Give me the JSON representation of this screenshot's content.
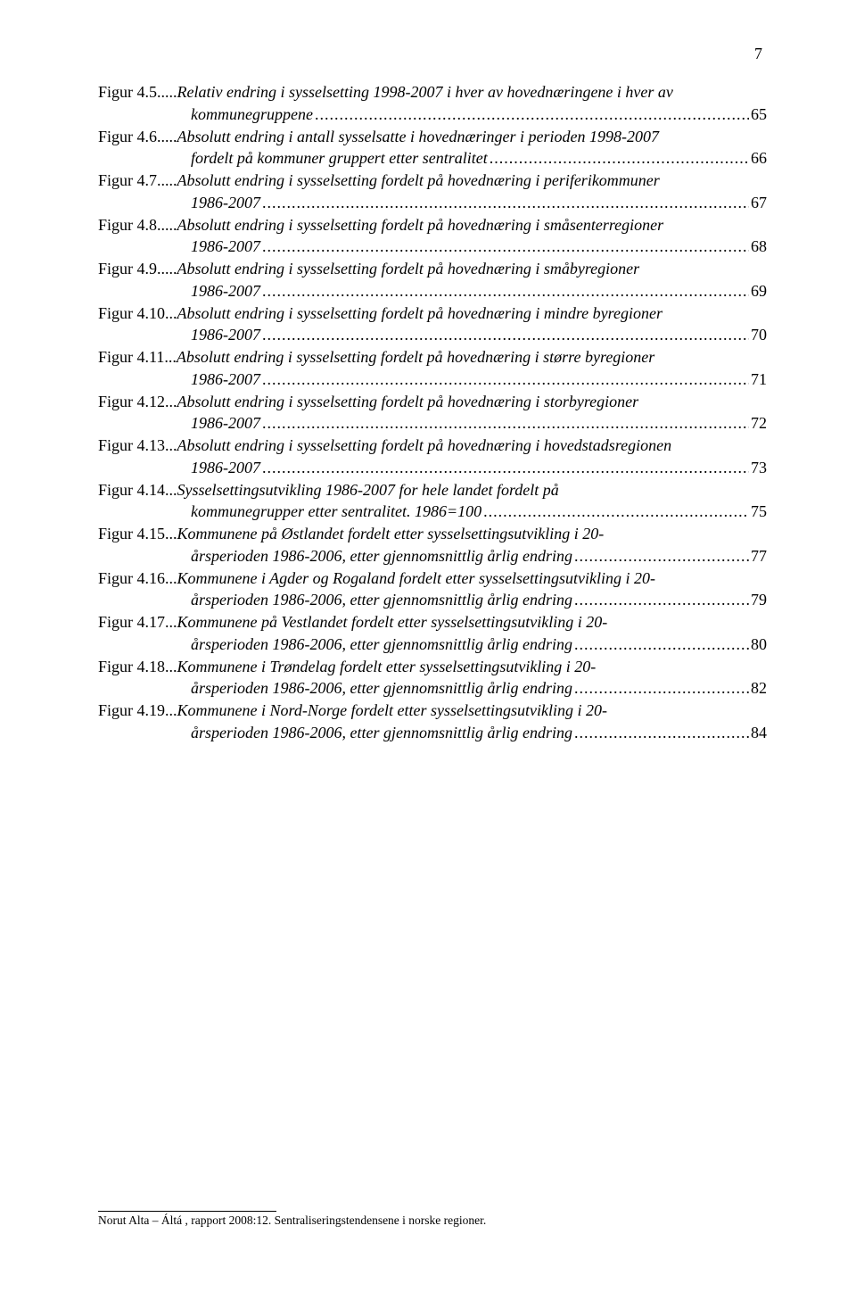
{
  "page_number": "7",
  "footer": "Norut Alta – Áltá , rapport 2008:12. Sentraliseringstendensene i norske regioner.",
  "entries": [
    {
      "label": "Figur 4.5.....",
      "lines": [
        "Relativ endring i sysselsetting 1998-2007 i hver av hovednæringene i hver av",
        "kommunegruppene"
      ],
      "page": "65"
    },
    {
      "label": "Figur 4.6.....",
      "lines": [
        "Absolutt endring i antall sysselsatte i hovednæringer i perioden 1998-2007",
        "fordelt på kommuner gruppert etter sentralitet"
      ],
      "page": "66"
    },
    {
      "label": "Figur 4.7.....",
      "lines": [
        "Absolutt endring i sysselsetting fordelt på hovednæring i periferikommuner",
        "1986-2007"
      ],
      "page": "67"
    },
    {
      "label": "Figur 4.8.....",
      "lines": [
        "Absolutt endring i sysselsetting fordelt på hovednæring i småsenterregioner",
        "1986-2007"
      ],
      "page": "68"
    },
    {
      "label": "Figur 4.9.....",
      "lines": [
        "Absolutt endring i sysselsetting fordelt på hovednæring i småbyregioner",
        "1986-2007"
      ],
      "page": "69"
    },
    {
      "label": "Figur 4.10...",
      "lines": [
        "Absolutt endring i sysselsetting fordelt på hovednæring i mindre byregioner",
        "1986-2007"
      ],
      "page": "70"
    },
    {
      "label": "Figur 4.11...",
      "lines": [
        "Absolutt endring i sysselsetting fordelt på hovednæring i større byregioner",
        "1986-2007"
      ],
      "page": "71"
    },
    {
      "label": "Figur 4.12...",
      "lines": [
        "Absolutt endring i sysselsetting fordelt på hovednæring i storbyregioner",
        "1986-2007"
      ],
      "page": "72"
    },
    {
      "label": "Figur 4.13...",
      "lines": [
        "Absolutt endring i sysselsetting fordelt på hovednæring i hovedstadsregionen",
        "1986-2007"
      ],
      "page": "73"
    },
    {
      "label": "Figur 4.14...",
      "lines": [
        "Sysselsettingsutvikling 1986-2007 for hele landet fordelt på",
        "kommunegrupper etter sentralitet. 1986=100"
      ],
      "page": "75"
    },
    {
      "label": "Figur 4.15...",
      "lines": [
        "Kommunene på Østlandet fordelt etter sysselsettingsutvikling i 20-",
        "årsperioden 1986-2006, etter gjennomsnittlig årlig endring"
      ],
      "page": "77"
    },
    {
      "label": "Figur 4.16...",
      "lines": [
        "Kommunene i Agder og Rogaland fordelt etter sysselsettingsutvikling i 20-",
        "årsperioden 1986-2006, etter gjennomsnittlig årlig endring"
      ],
      "page": "79"
    },
    {
      "label": "Figur 4.17...",
      "lines": [
        "Kommunene på Vestlandet fordelt etter sysselsettingsutvikling i 20-",
        "årsperioden 1986-2006, etter gjennomsnittlig årlig endring"
      ],
      "page": "80"
    },
    {
      "label": "Figur 4.18...",
      "lines": [
        "Kommunene i Trøndelag fordelt etter sysselsettingsutvikling i 20-",
        "årsperioden 1986-2006, etter gjennomsnittlig årlig endring"
      ],
      "page": "82"
    },
    {
      "label": "Figur 4.19...",
      "lines": [
        "Kommunene i Nord-Norge fordelt etter sysselsettingsutvikling i 20-",
        "årsperioden 1986-2006, etter gjennomsnittlig årlig endring"
      ],
      "page": "84"
    }
  ]
}
